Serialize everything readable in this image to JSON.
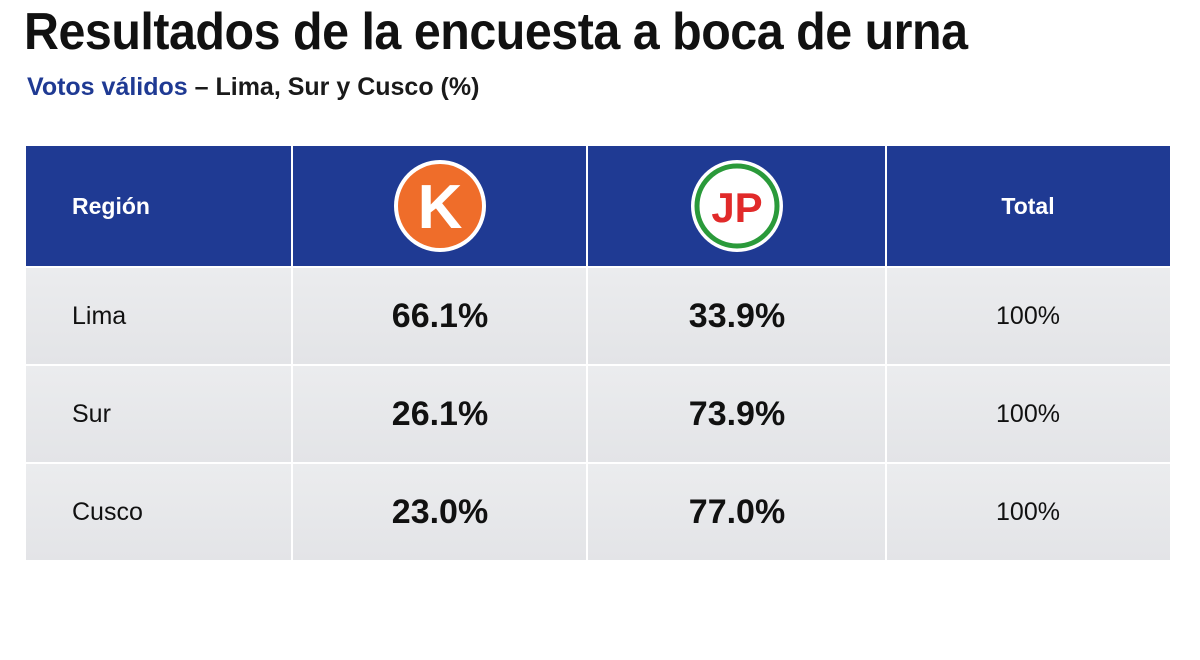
{
  "title": "Resultados de la encuesta a boca de urna",
  "subtitle": {
    "accent": "Votos válidos",
    "rest": " – Lima, Sur y Cusco (%)"
  },
  "colors": {
    "header_bg": "#1f3a93",
    "accent": "#1f3a93",
    "logo_k": "#ef6d2a",
    "logo_jp_red": "#e12a2a",
    "logo_jp_green": "#2a9a3a"
  },
  "header": {
    "region": "Región",
    "col_k_logo_text": "K",
    "col_jp_logo_text": "JP",
    "total": "Total"
  },
  "chart_data": {
    "type": "table",
    "columns": [
      "Región",
      "K",
      "JP",
      "Total"
    ],
    "rows": [
      {
        "region": "Lima",
        "k": "66.1%",
        "jp": "33.9%",
        "total": "100%"
      },
      {
        "region": "Sur",
        "k": "26.1%",
        "jp": "73.9%",
        "total": "100%"
      },
      {
        "region": "Cusco",
        "k": "23.0%",
        "jp": "77.0%",
        "total": "100%"
      }
    ]
  }
}
